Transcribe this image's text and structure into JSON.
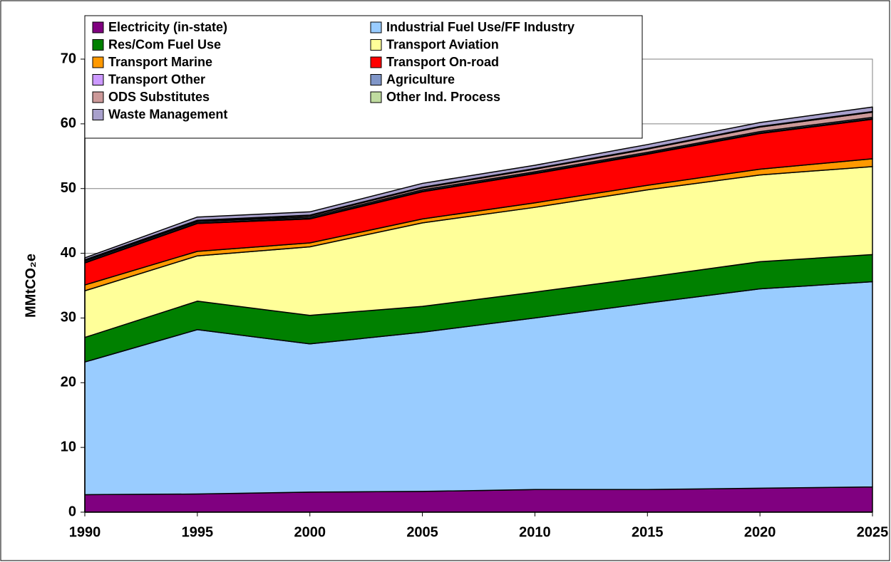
{
  "chart_data": {
    "type": "stacked_area",
    "y_label": "MMtCO₂e",
    "x": [
      1990,
      1995,
      2000,
      2005,
      2010,
      2015,
      2020,
      2025
    ],
    "xlim": [
      1990,
      2025
    ],
    "xticks": [
      1990,
      1995,
      2000,
      2005,
      2010,
      2015,
      2020,
      2025
    ],
    "ylim": [
      0,
      70
    ],
    "yticks": [
      0,
      10,
      20,
      30,
      40,
      50,
      60,
      70
    ],
    "grid": true,
    "legend": "top-left",
    "series": [
      {
        "name": "Electricity (in-state)",
        "color": "#800080",
        "values": [
          2.7,
          2.8,
          3.1,
          3.2,
          3.5,
          3.5,
          3.7,
          3.9
        ]
      },
      {
        "name": "Industrial Fuel Use/FF Industry",
        "color": "#99ccff",
        "values": [
          20.5,
          25.4,
          22.9,
          24.6,
          26.5,
          28.8,
          30.8,
          31.7
        ]
      },
      {
        "name": "Res/Com Fuel Use",
        "color": "#008000",
        "values": [
          3.8,
          4.4,
          4.4,
          4.0,
          4.0,
          4.0,
          4.2,
          4.2
        ]
      },
      {
        "name": "Transport Aviation",
        "color": "#ffff99",
        "values": [
          7.2,
          7.0,
          10.6,
          12.9,
          13.1,
          13.5,
          13.4,
          13.6
        ]
      },
      {
        "name": "Transport Marine",
        "color": "#ff9900",
        "values": [
          0.9,
          0.7,
          0.6,
          0.6,
          0.7,
          0.7,
          0.9,
          1.2
        ]
      },
      {
        "name": "Transport On-road",
        "color": "#ff0000",
        "values": [
          3.4,
          4.3,
          3.7,
          4.2,
          4.5,
          4.8,
          5.5,
          6.1
        ]
      },
      {
        "name": "Transport Other",
        "color": "#cc99ff",
        "values": [
          0.1,
          0.1,
          0.1,
          0.1,
          0.1,
          0.1,
          0.1,
          0.1
        ]
      },
      {
        "name": "Agriculture",
        "color": "#8096c8",
        "values": [
          0.2,
          0.2,
          0.2,
          0.2,
          0.2,
          0.2,
          0.2,
          0.2
        ]
      },
      {
        "name": "ODS Substitutes",
        "color": "#cc9999",
        "values": [
          0.1,
          0.1,
          0.2,
          0.3,
          0.4,
          0.5,
          0.7,
          0.8
        ]
      },
      {
        "name": "Other Ind. Process",
        "color": "#c0dca0",
        "values": [
          0.1,
          0.1,
          0.1,
          0.1,
          0.1,
          0.1,
          0.1,
          0.1
        ]
      },
      {
        "name": "Waste Management",
        "color": "#a8a0cc",
        "values": [
          0.3,
          0.5,
          0.5,
          0.6,
          0.5,
          0.6,
          0.6,
          0.7
        ]
      }
    ]
  }
}
